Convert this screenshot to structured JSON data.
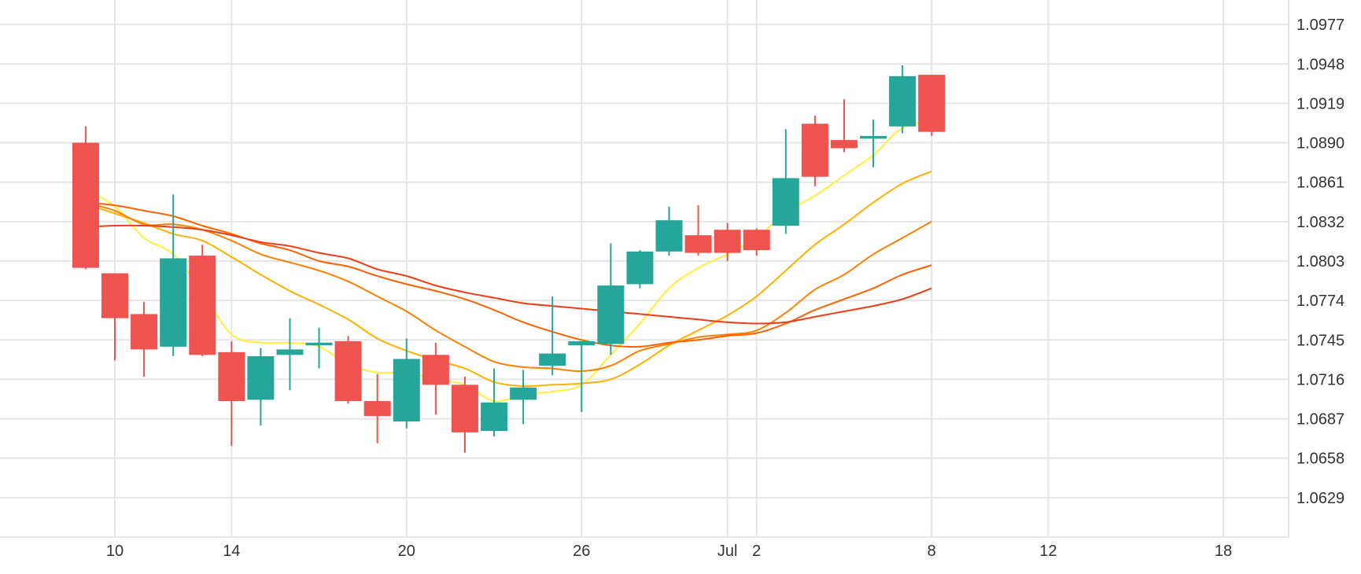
{
  "chart_data": {
    "type": "candlestick",
    "title": "",
    "xlabel": "",
    "ylabel": "",
    "y_axis_side": "right",
    "ylim": [
      1.06,
      1.0995
    ],
    "y_ticks": [
      "1.0629",
      "1.0658",
      "1.0687",
      "1.0716",
      "1.0745",
      "1.0774",
      "1.0803",
      "1.0832",
      "1.0861",
      "1.0890",
      "1.0919",
      "1.0948",
      "1.0977"
    ],
    "x_ticks": [
      {
        "label": "10",
        "date": "2024-06-10"
      },
      {
        "label": "14",
        "date": "2024-06-14"
      },
      {
        "label": "20",
        "date": "2024-06-20"
      },
      {
        "label": "26",
        "date": "2024-06-26"
      },
      {
        "label": "Jul",
        "date": "2024-07-01"
      },
      {
        "label": "2",
        "date": "2024-07-02"
      },
      {
        "label": "8",
        "date": "2024-07-08"
      },
      {
        "label": "12",
        "date": "2024-07-12"
      },
      {
        "label": "18",
        "date": "2024-07-18"
      }
    ],
    "x_range": [
      "2024-06-07",
      "2024-07-20"
    ],
    "grid": true,
    "colors": {
      "up": "#26a69a",
      "down": "#ef5350",
      "grid": "#e6e6e6",
      "text": "#333333"
    },
    "candles": [
      {
        "date": "2024-06-09",
        "open": 1.089,
        "high": 1.0902,
        "low": 1.0797,
        "close": 1.0798
      },
      {
        "date": "2024-06-10",
        "open": 1.0794,
        "high": 1.0794,
        "low": 1.073,
        "close": 1.0761
      },
      {
        "date": "2024-06-11",
        "open": 1.0764,
        "high": 1.0773,
        "low": 1.0718,
        "close": 1.0738
      },
      {
        "date": "2024-06-12",
        "open": 1.074,
        "high": 1.0852,
        "low": 1.0733,
        "close": 1.0805
      },
      {
        "date": "2024-06-13",
        "open": 1.0807,
        "high": 1.0815,
        "low": 1.0733,
        "close": 1.0734
      },
      {
        "date": "2024-06-14",
        "open": 1.0736,
        "high": 1.0744,
        "low": 1.0667,
        "close": 1.07
      },
      {
        "date": "2024-06-15",
        "open": 1.0701,
        "high": 1.0739,
        "low": 1.0682,
        "close": 1.0733
      },
      {
        "date": "2024-06-16",
        "open": 1.0734,
        "high": 1.0761,
        "low": 1.0708,
        "close": 1.0738
      },
      {
        "date": "2024-06-17",
        "open": 1.0741,
        "high": 1.0754,
        "low": 1.0724,
        "close": 1.0743
      },
      {
        "date": "2024-06-18",
        "open": 1.0744,
        "high": 1.0748,
        "low": 1.0698,
        "close": 1.07
      },
      {
        "date": "2024-06-19",
        "open": 1.07,
        "high": 1.072,
        "low": 1.0669,
        "close": 1.0689
      },
      {
        "date": "2024-06-20",
        "open": 1.0685,
        "high": 1.0746,
        "low": 1.068,
        "close": 1.0731
      },
      {
        "date": "2024-06-21",
        "open": 1.0734,
        "high": 1.0743,
        "low": 1.069,
        "close": 1.0712
      },
      {
        "date": "2024-06-22",
        "open": 1.0712,
        "high": 1.0718,
        "low": 1.0662,
        "close": 1.0677
      },
      {
        "date": "2024-06-23",
        "open": 1.0678,
        "high": 1.0724,
        "low": 1.0674,
        "close": 1.0699
      },
      {
        "date": "2024-06-24",
        "open": 1.0701,
        "high": 1.0723,
        "low": 1.0683,
        "close": 1.071
      },
      {
        "date": "2024-06-25",
        "open": 1.0726,
        "high": 1.0777,
        "low": 1.0719,
        "close": 1.0735
      },
      {
        "date": "2024-06-26",
        "open": 1.0741,
        "high": 1.0744,
        "low": 1.0692,
        "close": 1.0744
      },
      {
        "date": "2024-06-27",
        "open": 1.0742,
        "high": 1.0816,
        "low": 1.0734,
        "close": 1.0785
      },
      {
        "date": "2024-06-28",
        "open": 1.0786,
        "high": 1.0811,
        "low": 1.0783,
        "close": 1.081
      },
      {
        "date": "2024-06-29",
        "open": 1.081,
        "high": 1.0843,
        "low": 1.0807,
        "close": 1.0833
      },
      {
        "date": "2024-06-30",
        "open": 1.0822,
        "high": 1.0844,
        "low": 1.0807,
        "close": 1.0809
      },
      {
        "date": "2024-07-01",
        "open": 1.0826,
        "high": 1.0831,
        "low": 1.0803,
        "close": 1.0809
      },
      {
        "date": "2024-07-02",
        "open": 1.0826,
        "high": 1.0827,
        "low": 1.0807,
        "close": 1.0811
      },
      {
        "date": "2024-07-03",
        "open": 1.0829,
        "high": 1.09,
        "low": 1.0823,
        "close": 1.0864
      },
      {
        "date": "2024-07-04",
        "open": 1.0904,
        "high": 1.091,
        "low": 1.0858,
        "close": 1.0865
      },
      {
        "date": "2024-07-05",
        "open": 1.0892,
        "high": 1.0922,
        "low": 1.0883,
        "close": 1.0886
      },
      {
        "date": "2024-07-06",
        "open": 1.0893,
        "high": 1.0907,
        "low": 1.0872,
        "close": 1.0895
      },
      {
        "date": "2024-07-07",
        "open": 1.0902,
        "high": 1.0947,
        "low": 1.0897,
        "close": 1.0939
      },
      {
        "date": "2024-07-08",
        "open": 1.094,
        "high": 1.094,
        "low": 1.0895,
        "close": 1.0898
      }
    ],
    "series": [
      {
        "color": "#ffee3b",
        "values": [
          [
            9,
            1.0856
          ],
          [
            10,
            1.0843
          ],
          [
            11,
            1.082
          ],
          [
            12,
            1.0808
          ],
          [
            13,
            1.078
          ],
          [
            14,
            1.0749
          ],
          [
            15,
            1.0743
          ],
          [
            16,
            1.0743
          ],
          [
            17,
            1.074
          ],
          [
            18,
            1.0727
          ],
          [
            19,
            1.0721
          ],
          [
            20,
            1.0721
          ],
          [
            21,
            1.0716
          ],
          [
            22,
            1.0712
          ],
          [
            23,
            1.07
          ],
          [
            24,
            1.0705
          ],
          [
            25,
            1.0707
          ],
          [
            26,
            1.0712
          ],
          [
            27,
            1.0734
          ],
          [
            28,
            1.0757
          ],
          [
            29,
            1.0783
          ],
          [
            30,
            1.0798
          ],
          [
            31,
            1.0808
          ],
          [
            32,
            1.082
          ],
          [
            33,
            1.0839
          ],
          [
            34,
            1.0851
          ],
          [
            35,
            1.0866
          ],
          [
            36,
            1.0881
          ],
          [
            37,
            1.0901
          ],
          [
            38,
            1.0906
          ]
        ]
      },
      {
        "color": "#ffb000",
        "values": [
          [
            9,
            1.0845
          ],
          [
            10,
            1.0838
          ],
          [
            11,
            1.0831
          ],
          [
            12,
            1.0823
          ],
          [
            13,
            1.0818
          ],
          [
            14,
            1.0806
          ],
          [
            15,
            1.0793
          ],
          [
            16,
            1.0781
          ],
          [
            17,
            1.0771
          ],
          [
            18,
            1.076
          ],
          [
            19,
            1.0746
          ],
          [
            20,
            1.0737
          ],
          [
            21,
            1.073
          ],
          [
            22,
            1.0724
          ],
          [
            23,
            1.0714
          ],
          [
            24,
            1.0711
          ],
          [
            25,
            1.0712
          ],
          [
            26,
            1.0713
          ],
          [
            27,
            1.0716
          ],
          [
            28,
            1.0727
          ],
          [
            29,
            1.0741
          ],
          [
            30,
            1.0752
          ],
          [
            31,
            1.0763
          ],
          [
            32,
            1.0777
          ],
          [
            33,
            1.0796
          ],
          [
            34,
            1.0815
          ],
          [
            35,
            1.083
          ],
          [
            36,
            1.0846
          ],
          [
            37,
            1.086
          ],
          [
            38,
            1.0869
          ]
        ]
      },
      {
        "color": "#ff8000",
        "values": [
          [
            9,
            1.0846
          ],
          [
            10,
            1.084
          ],
          [
            11,
            1.083
          ],
          [
            12,
            1.083
          ],
          [
            13,
            1.0826
          ],
          [
            14,
            1.0818
          ],
          [
            15,
            1.0808
          ],
          [
            16,
            1.0802
          ],
          [
            17,
            1.0796
          ],
          [
            18,
            1.0788
          ],
          [
            19,
            1.0777
          ],
          [
            20,
            1.0766
          ],
          [
            21,
            1.0752
          ],
          [
            22,
            1.074
          ],
          [
            23,
            1.0729
          ],
          [
            24,
            1.0725
          ],
          [
            25,
            1.0724
          ],
          [
            26,
            1.0722
          ],
          [
            27,
            1.0726
          ],
          [
            28,
            1.0737
          ],
          [
            29,
            1.0742
          ],
          [
            30,
            1.0747
          ],
          [
            31,
            1.0749
          ],
          [
            32,
            1.0752
          ],
          [
            33,
            1.0765
          ],
          [
            34,
            1.0782
          ],
          [
            35,
            1.0793
          ],
          [
            36,
            1.0808
          ],
          [
            37,
            1.082
          ],
          [
            38,
            1.0832
          ]
        ]
      },
      {
        "color": "#ff6000",
        "values": [
          [
            9,
            1.0846
          ],
          [
            10,
            1.0844
          ],
          [
            11,
            1.084
          ],
          [
            12,
            1.0836
          ],
          [
            13,
            1.0829
          ],
          [
            14,
            1.0823
          ],
          [
            15,
            1.0816
          ],
          [
            16,
            1.0811
          ],
          [
            17,
            1.0803
          ],
          [
            18,
            1.0799
          ],
          [
            19,
            1.0792
          ],
          [
            20,
            1.0786
          ],
          [
            21,
            1.0781
          ],
          [
            22,
            1.0775
          ],
          [
            23,
            1.0767
          ],
          [
            24,
            1.0758
          ],
          [
            25,
            1.0751
          ],
          [
            26,
            1.0745
          ],
          [
            27,
            1.0741
          ],
          [
            28,
            1.074
          ],
          [
            29,
            1.0743
          ],
          [
            30,
            1.0745
          ],
          [
            31,
            1.0748
          ],
          [
            32,
            1.075
          ],
          [
            33,
            1.0757
          ],
          [
            34,
            1.0767
          ],
          [
            35,
            1.0775
          ],
          [
            36,
            1.0783
          ],
          [
            37,
            1.0793
          ],
          [
            38,
            1.08
          ]
        ]
      },
      {
        "color": "#f03c14",
        "values": [
          [
            9,
            1.0828
          ],
          [
            10,
            1.0829
          ],
          [
            11,
            1.0829
          ],
          [
            12,
            1.0828
          ],
          [
            13,
            1.0826
          ],
          [
            14,
            1.0822
          ],
          [
            15,
            1.0817
          ],
          [
            16,
            1.0814
          ],
          [
            17,
            1.0809
          ],
          [
            18,
            1.0805
          ],
          [
            19,
            1.0797
          ],
          [
            20,
            1.0792
          ],
          [
            21,
            1.0785
          ],
          [
            22,
            1.078
          ],
          [
            23,
            1.0776
          ],
          [
            24,
            1.0772
          ],
          [
            25,
            1.077
          ],
          [
            26,
            1.0768
          ],
          [
            27,
            1.0766
          ],
          [
            28,
            1.0764
          ],
          [
            29,
            1.0762
          ],
          [
            30,
            1.076
          ],
          [
            31,
            1.0758
          ],
          [
            32,
            1.0757
          ],
          [
            33,
            1.0758
          ],
          [
            34,
            1.0762
          ],
          [
            35,
            1.0766
          ],
          [
            36,
            1.077
          ],
          [
            37,
            1.0775
          ],
          [
            38,
            1.0783
          ]
        ]
      }
    ]
  }
}
